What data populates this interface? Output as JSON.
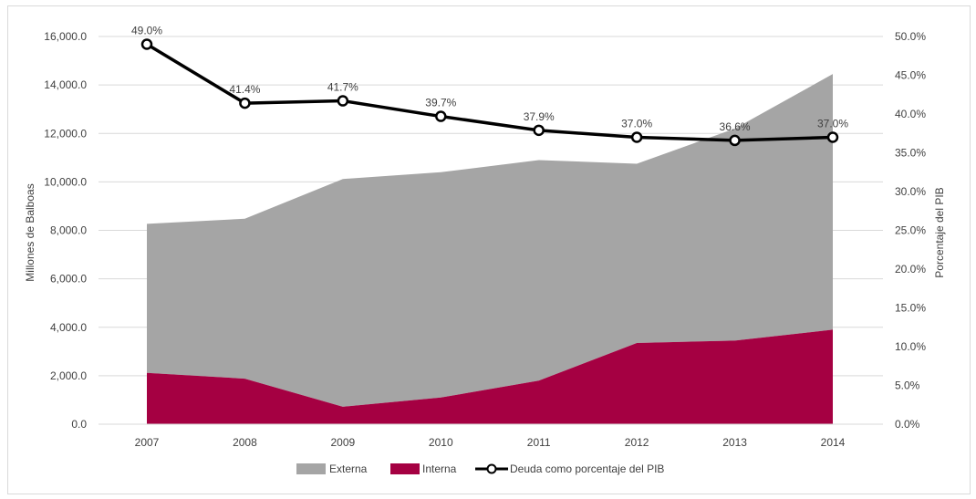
{
  "chart_data": {
    "type": "area",
    "categories": [
      "2007",
      "2008",
      "2009",
      "2010",
      "2011",
      "2012",
      "2013",
      "2014"
    ],
    "series": [
      {
        "name": "Externa",
        "type": "area",
        "stacked": true,
        "color": "#a5a5a5",
        "values": [
          6150,
          6600,
          9400,
          9300,
          9100,
          7400,
          8750,
          10550
        ]
      },
      {
        "name": "Interna",
        "type": "area",
        "stacked": true,
        "color": "#a50042",
        "values": [
          2120,
          1880,
          720,
          1100,
          1800,
          3350,
          3450,
          3900
        ]
      },
      {
        "name": "Deuda como porcentaje del PIB",
        "type": "line",
        "axis": "right",
        "color": "#000000",
        "values": [
          49.0,
          41.4,
          41.7,
          39.7,
          37.9,
          37.0,
          36.6,
          37.0
        ],
        "labels": [
          "49.0%",
          "41.4%",
          "41.7%",
          "39.7%",
          "37.9%",
          "37.0%",
          "36.6%",
          "37.0%"
        ]
      }
    ],
    "yaxis_left": {
      "label": "Millones de Balboas",
      "range": [
        0,
        16000
      ],
      "ticks": [
        0,
        2000,
        4000,
        6000,
        8000,
        10000,
        12000,
        14000,
        16000
      ],
      "tick_labels": [
        "0.0",
        "2,000.0",
        "4,000.0",
        "6,000.0",
        "8,000.0",
        "10,000.0",
        "12,000.0",
        "14,000.0",
        "16,000.0"
      ]
    },
    "yaxis_right": {
      "label": "Porcentaje del PIB",
      "range": [
        0,
        50
      ],
      "ticks": [
        0,
        5,
        10,
        15,
        20,
        25,
        30,
        35,
        40,
        45,
        50
      ],
      "tick_labels": [
        "0.0%",
        "5.0%",
        "10.0%",
        "15.0%",
        "20.0%",
        "25.0%",
        "30.0%",
        "35.0%",
        "40.0%",
        "45.0%",
        "50.0%"
      ]
    },
    "grid": true,
    "legend": {
      "position": "bottom",
      "entries": [
        "Externa",
        "Interna",
        "Deuda como porcentaje del PIB"
      ]
    }
  }
}
